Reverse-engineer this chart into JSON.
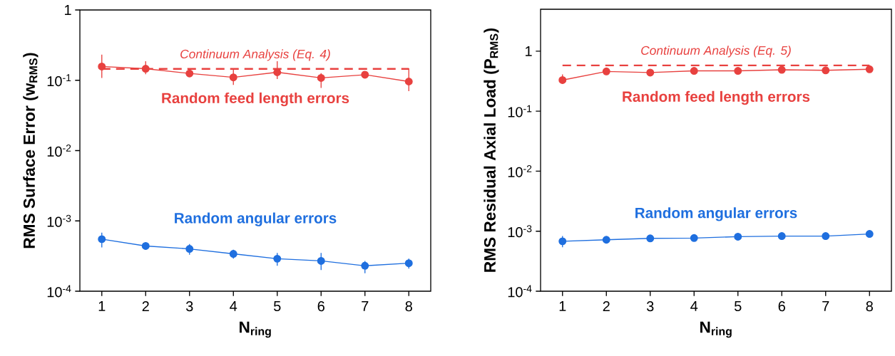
{
  "chart_data": [
    {
      "type": "line",
      "xlabel": "N$_{ring}$",
      "ylabel": "RMS Surface Error (w$_{RMS}$)",
      "x": [
        1,
        2,
        3,
        4,
        5,
        6,
        7,
        8
      ],
      "xlim": [
        0.5,
        8.5
      ],
      "xticks": [
        1,
        2,
        3,
        4,
        5,
        6,
        7,
        8
      ],
      "ylim": [
        0.0001,
        1
      ],
      "log": true,
      "yticks": [
        {
          "value": 0.0001,
          "label": "10$^{-4}$"
        },
        {
          "value": 0.001,
          "label": "10$^{-3}$"
        },
        {
          "value": 0.01,
          "label": "10$^{-2}$"
        },
        {
          "value": 0.1,
          "label": "10$^{-1}$"
        },
        1
      ],
      "marker": "circle",
      "line_style": "solid",
      "series": [
        {
          "name": "Random feed length errors",
          "color": "#e8413f",
          "values": [
            0.157,
            0.146,
            0.125,
            0.11,
            0.13,
            0.108,
            0.12,
            0.096
          ],
          "errors": [
            [
              0.108,
              0.232
            ],
            [
              0.122,
              0.187
            ],
            null,
            [
              0.086,
              0.146
            ],
            [
              0.104,
              0.187
            ],
            [
              0.078,
              0.126
            ],
            [
              0.108,
              0.133
            ],
            [
              0.07,
              0.148
            ]
          ]
        },
        {
          "name": "Random angular errors",
          "color": "#1f6fdf",
          "values": [
            0.00055,
            0.00044,
            0.0004,
            0.00034,
            0.00029,
            0.00027,
            0.00023,
            0.00025
          ],
          "errors": [
            [
              0.00042,
              0.00068
            ],
            null,
            [
              0.00033,
              0.00047
            ],
            [
              0.00029,
              0.00039
            ],
            [
              0.00023,
              0.00035
            ],
            [
              0.0002,
              0.00035
            ],
            [
              0.00018,
              0.00027
            ],
            [
              0.00021,
              0.00029
            ]
          ]
        }
      ],
      "ref_lines": [
        {
          "axis": "y",
          "value": 0.145,
          "label": "Continuum Analysis (Eq. 4)",
          "color": "#e8413f",
          "line_style": "dashed"
        }
      ]
    },
    {
      "type": "line",
      "xlabel": "N$_{ring}$",
      "ylabel": "RMS Residual Axial Load (P$_{RMS}$)",
      "x": [
        1,
        2,
        3,
        4,
        5,
        6,
        7,
        8
      ],
      "xlim": [
        0.5,
        8.5
      ],
      "xticks": [
        1,
        2,
        3,
        4,
        5,
        6,
        7,
        8
      ],
      "ylim": [
        0.0001,
        5
      ],
      "log": true,
      "yticks": [
        {
          "value": 0.0001,
          "label": "10$^{-4}$"
        },
        {
          "value": 0.001,
          "label": "10$^{-3}$"
        },
        {
          "value": 0.01,
          "label": "10$^{-2}$"
        },
        {
          "value": 0.1,
          "label": "10$^{-1}$"
        },
        1
      ],
      "marker": "circle",
      "line_style": "solid",
      "series": [
        {
          "name": "Random feed length errors",
          "color": "#e8413f",
          "values": [
            0.33,
            0.46,
            0.44,
            0.47,
            0.47,
            0.49,
            0.48,
            0.5
          ],
          "errors": [
            [
              0.29,
              0.41
            ],
            null,
            null,
            null,
            null,
            null,
            null,
            null
          ]
        },
        {
          "name": "Random angular errors",
          "color": "#1f6fdf",
          "values": [
            0.00068,
            0.00072,
            0.00076,
            0.00077,
            0.00081,
            0.00083,
            0.00083,
            0.0009
          ],
          "errors": [
            [
              0.00054,
              0.00083
            ],
            null,
            null,
            null,
            null,
            null,
            null,
            null
          ]
        }
      ],
      "ref_lines": [
        {
          "axis": "y",
          "value": 0.58,
          "label": "Continuum Analysis (Eq. 5)",
          "color": "#e8413f",
          "line_style": "dashed"
        }
      ]
    }
  ]
}
